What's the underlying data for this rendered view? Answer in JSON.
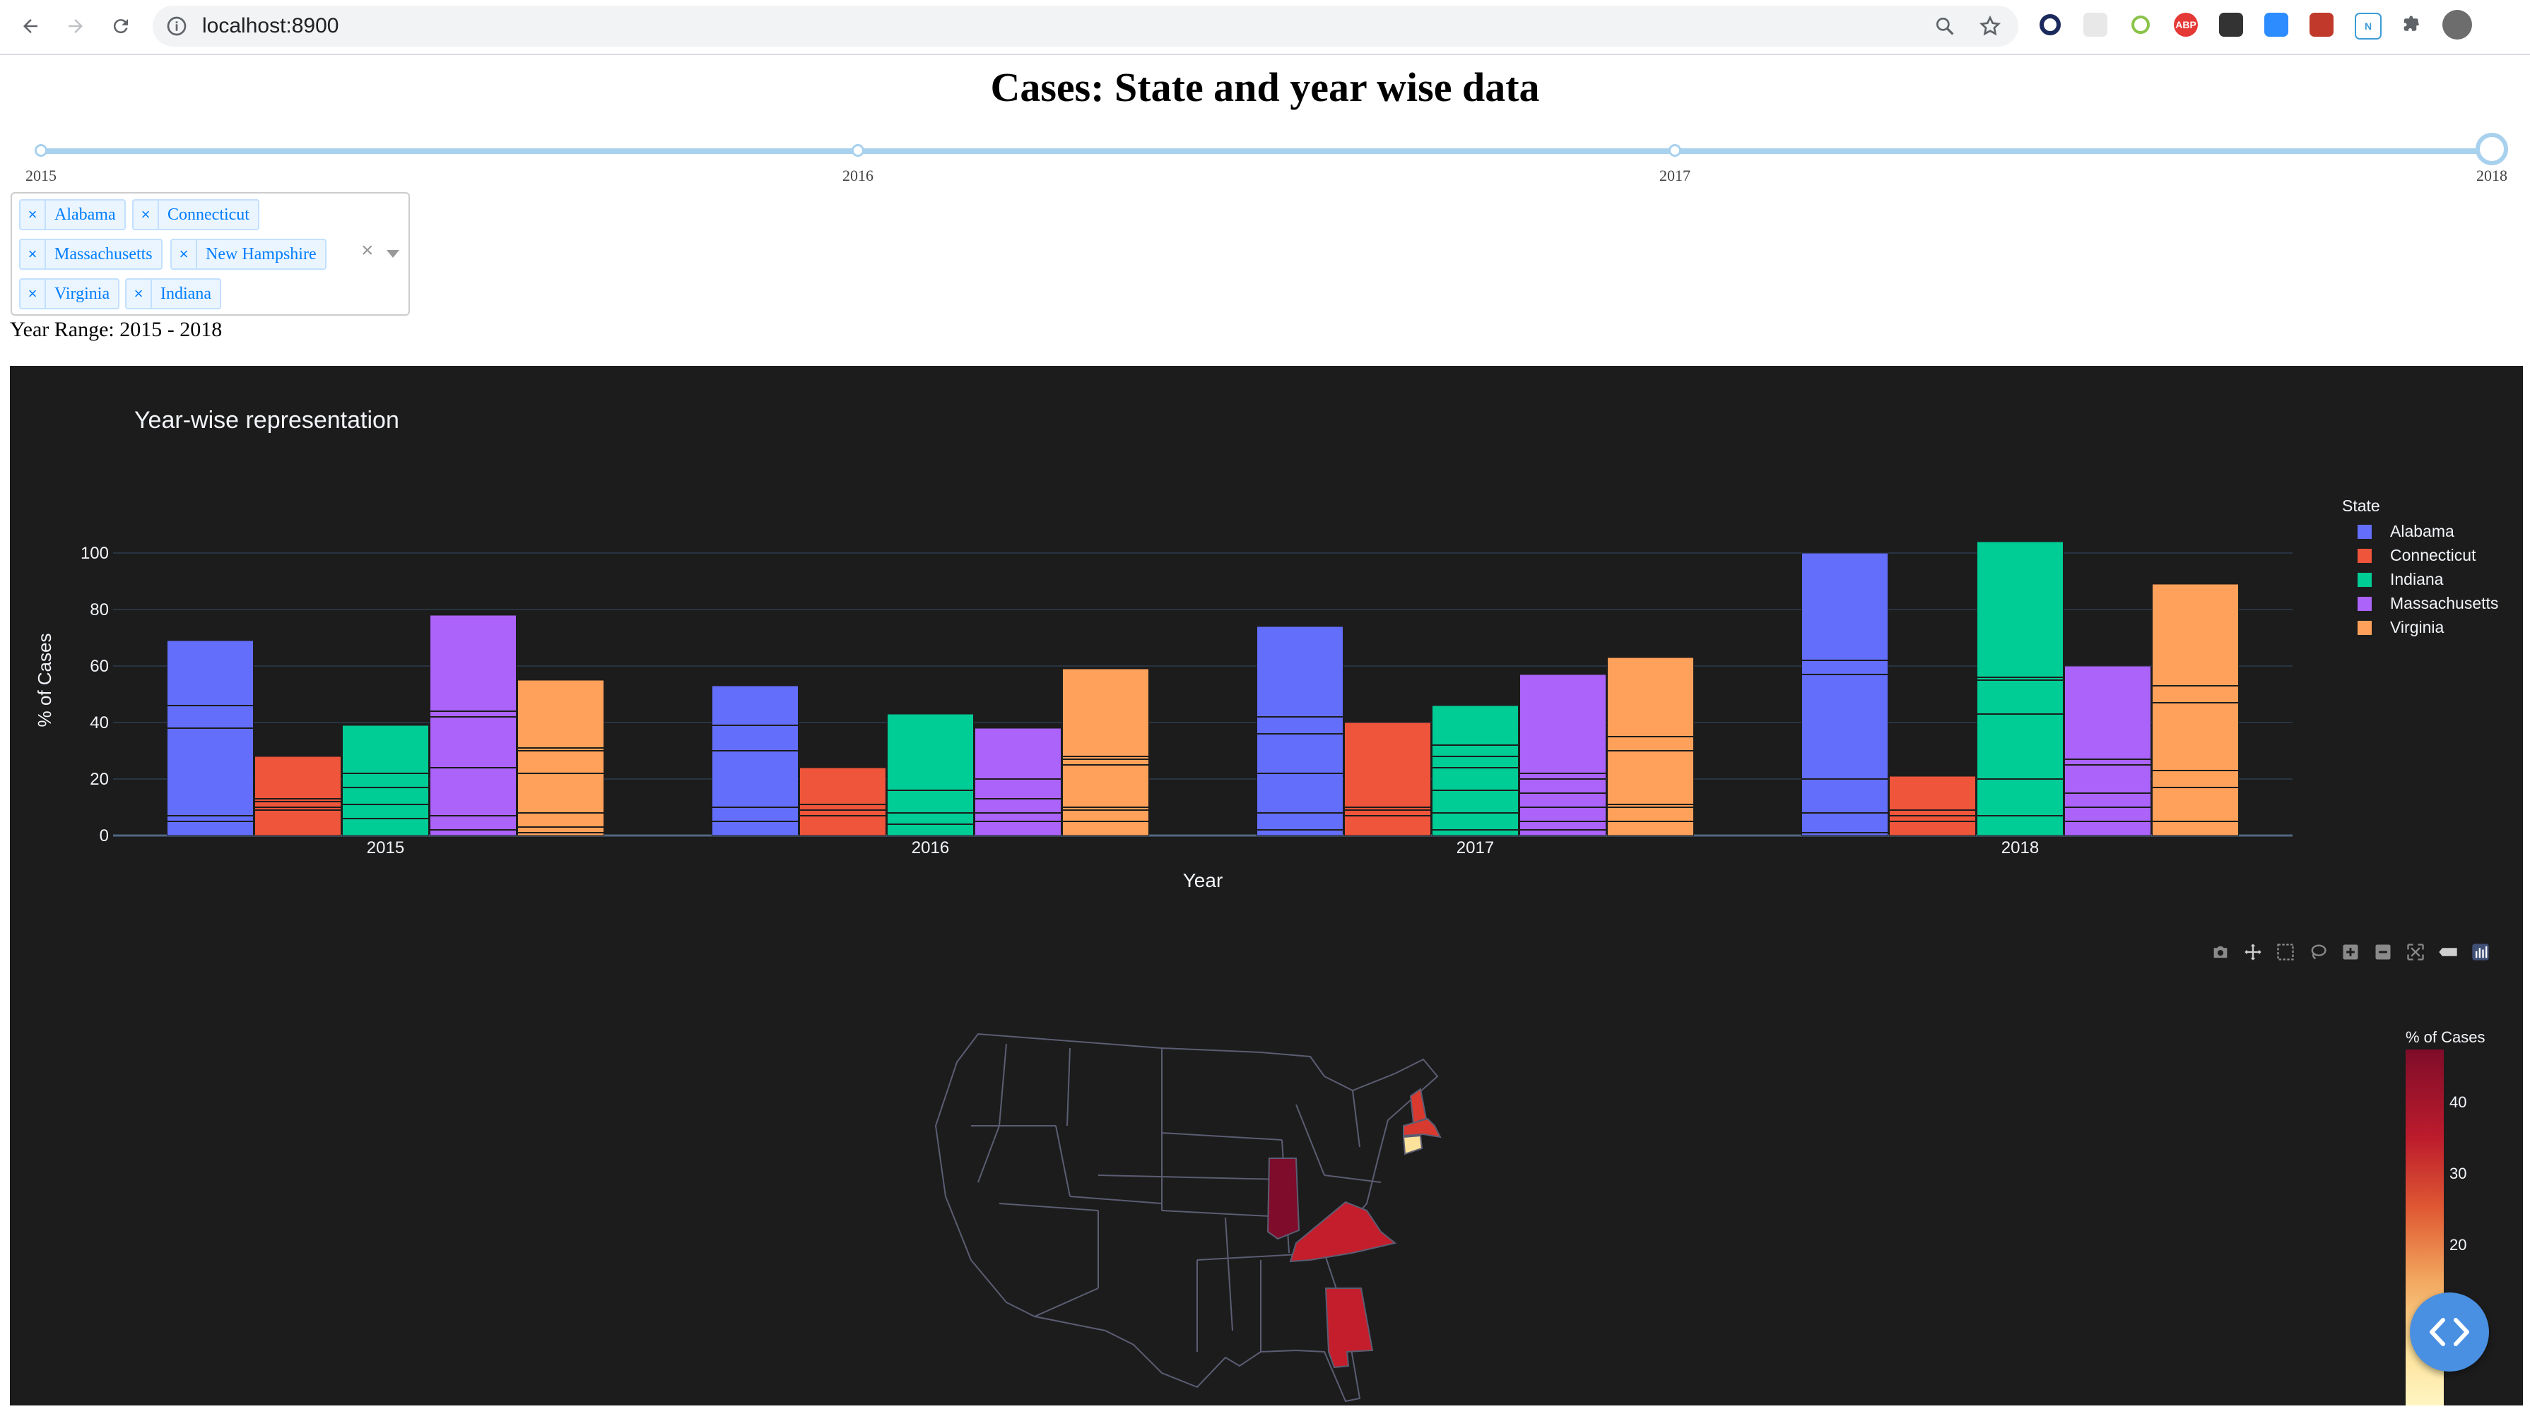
{
  "browser": {
    "url": "localhost:8900",
    "extensions": [
      "opera-icon",
      "note-icon",
      "circle-extension-icon",
      "abp-icon",
      "qr-icon",
      "zoom-icon",
      "briefcase-icon",
      "notion-icon",
      "puzzle-icon",
      "profile-avatar"
    ],
    "abp_label": "ABP"
  },
  "page": {
    "title": "Cases: State and year wise data",
    "slider": {
      "marks": [
        "2015",
        "2016",
        "2017",
        "2018"
      ],
      "selected": "2018"
    },
    "states_selected": [
      "Alabama",
      "Connecticut",
      "Massachusetts",
      "New Hampshire",
      "Virginia",
      "Indiana"
    ],
    "clear_symbol": "×",
    "remove_symbol": "×",
    "year_range": "Year Range: 2015 - 2018"
  },
  "chart_data": [
    {
      "type": "bar",
      "title": "Year-wise representation",
      "xlabel": "Year",
      "ylabel": "% of Cases",
      "ylim": [
        0,
        110
      ],
      "yticks": [
        0,
        20,
        40,
        60,
        80,
        100
      ],
      "grid": true,
      "legend_title": "State",
      "legend_position": "right",
      "categories": [
        "2015",
        "2016",
        "2017",
        "2018"
      ],
      "series": [
        {
          "name": "Alabama",
          "color": "#636efa",
          "values": [
            69,
            53,
            74,
            100
          ],
          "segments": [
            [
              5,
              7,
              38,
              46
            ],
            [
              5,
              10,
              30,
              39
            ],
            [
              2,
              8,
              22,
              36,
              42
            ],
            [
              1,
              8,
              20,
              57,
              62
            ]
          ]
        },
        {
          "name": "Connecticut",
          "color": "#ef553b",
          "values": [
            28,
            24,
            40,
            21
          ],
          "segments": [
            [
              9,
              10,
              12,
              13
            ],
            [
              7,
              9,
              11
            ],
            [
              7,
              9,
              10
            ],
            [
              5,
              7,
              9
            ]
          ]
        },
        {
          "name": "Indiana",
          "color": "#00cc96",
          "values": [
            39,
            43,
            46,
            104
          ],
          "segments": [
            [
              6,
              11,
              17,
              22
            ],
            [
              4,
              8,
              16
            ],
            [
              2,
              8,
              16,
              24,
              28,
              32
            ],
            [
              7,
              20,
              43,
              55,
              56
            ]
          ]
        },
        {
          "name": "Massachusetts",
          "color": "#ab63fa",
          "values": [
            78,
            38,
            57,
            60
          ],
          "segments": [
            [
              2,
              7,
              24,
              42,
              44
            ],
            [
              5,
              8,
              13,
              20
            ],
            [
              2,
              5,
              10,
              15,
              20,
              22
            ],
            [
              5,
              10,
              15,
              25,
              27
            ]
          ]
        },
        {
          "name": "Virginia",
          "color": "#ffa15a",
          "values": [
            55,
            59,
            63,
            89
          ],
          "segments": [
            [
              1,
              3,
              8,
              22,
              30,
              31
            ],
            [
              5,
              9,
              10,
              25,
              27,
              28
            ],
            [
              5,
              10,
              11,
              30,
              35
            ],
            [
              5,
              17,
              23,
              47,
              53
            ]
          ]
        }
      ]
    },
    {
      "type": "heatmap",
      "map": "usa-states",
      "colorbar_title": "% of Cases",
      "colorbar_ticks": [
        20,
        30,
        40
      ],
      "colorscale": [
        "#fff5c2",
        "#fde29b",
        "#f2a85f",
        "#e05a33",
        "#bd1c2c",
        "#7f0c2a"
      ],
      "colorbar_range": [
        10,
        48
      ],
      "values": [
        {
          "state": "Indiana",
          "value": 46
        },
        {
          "state": "Alabama",
          "value": 37
        },
        {
          "state": "Virginia",
          "value": 35
        },
        {
          "state": "Massachusetts",
          "value": 32
        },
        {
          "state": "New Hampshire",
          "value": 32
        },
        {
          "state": "Connecticut",
          "value": 16
        }
      ]
    }
  ]
}
